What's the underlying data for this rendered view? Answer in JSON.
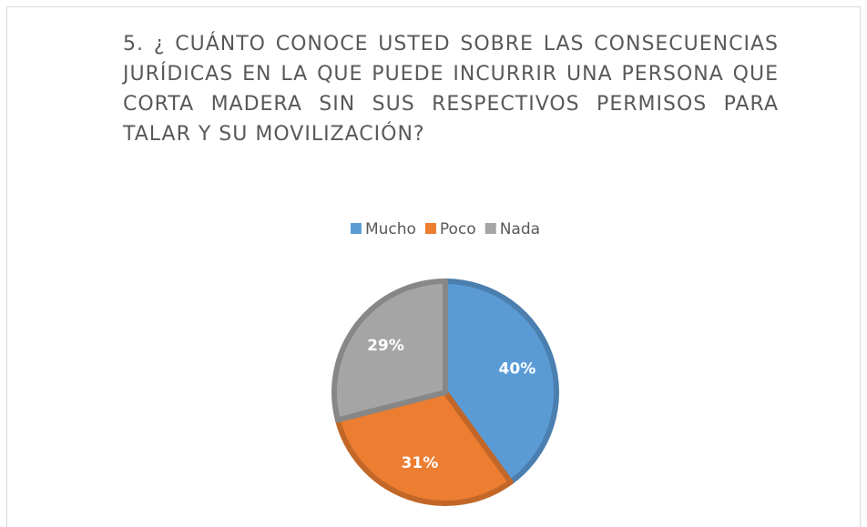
{
  "chart_data": {
    "type": "pie",
    "title": "5. ¿ CUÁNTO CONOCE USTED SOBRE LAS CONSECUENCIAS JURÍDICAS EN LA QUE PUEDE INCURRIR UNA PERSONA QUE CORTA MADERA SIN SUS RESPECTIVOS PERMISOS PARA TALAR Y SU MOVILIZACIÓN?",
    "categories": [
      "Mucho",
      "Poco",
      "Nada"
    ],
    "values": [
      40,
      31,
      29
    ],
    "value_labels": [
      "40%",
      "31%",
      "29%"
    ],
    "colors": [
      "#5b9bd5",
      "#ed7d31",
      "#a5a5a5"
    ],
    "legend": "top"
  }
}
